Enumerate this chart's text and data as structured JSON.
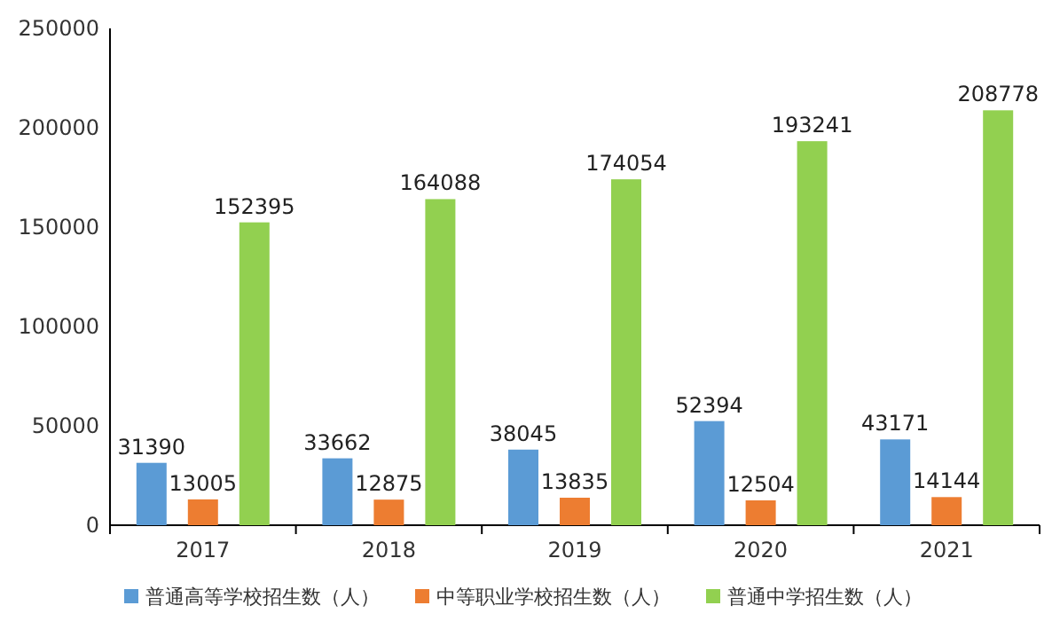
{
  "chart_data": {
    "type": "bar",
    "categories": [
      "2017",
      "2018",
      "2019",
      "2020",
      "2021"
    ],
    "series": [
      {
        "name": "普通高等学校招生数（人）",
        "color": "#5b9bd5",
        "values": [
          31390,
          33662,
          38045,
          52394,
          43171
        ]
      },
      {
        "name": "中等职业学校招生数（人）",
        "color": "#ed7d31",
        "values": [
          13005,
          12875,
          13835,
          12504,
          14144
        ]
      },
      {
        "name": "普通中学招生数（人）",
        "color": "#92d050",
        "values": [
          152395,
          164088,
          174054,
          193241,
          208778
        ]
      }
    ],
    "ylim": [
      0,
      250000
    ],
    "yticks": [
      0,
      50000,
      100000,
      150000,
      200000,
      250000
    ],
    "grid": false,
    "legend": "bottom",
    "data_labels": true
  }
}
